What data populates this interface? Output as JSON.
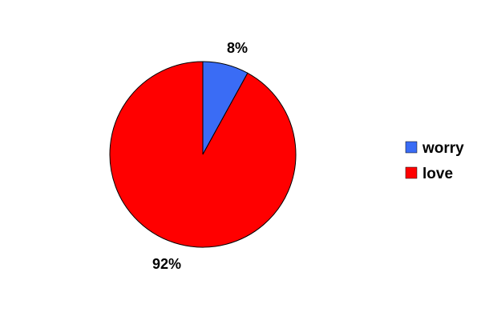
{
  "chart_data": {
    "type": "pie",
    "slices": [
      {
        "name": "worry",
        "value": 8,
        "label": "8%",
        "color": "#3a6cf5"
      },
      {
        "name": "love",
        "value": 92,
        "label": "92%",
        "color": "#ff0000"
      }
    ],
    "start_angle": "top",
    "direction": "clockwise",
    "legend_position": "right"
  }
}
